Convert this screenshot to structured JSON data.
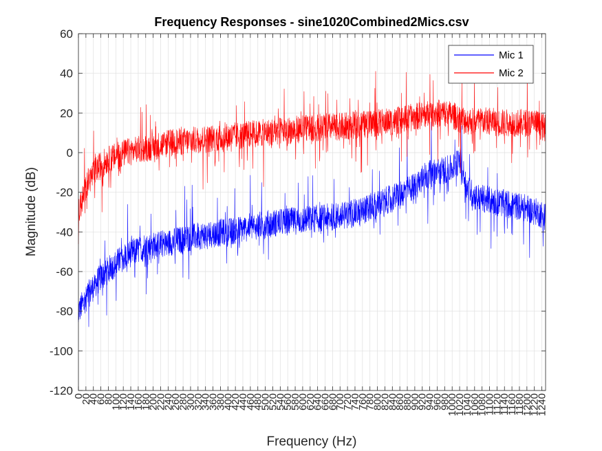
{
  "chart_data": {
    "type": "line",
    "title": "Frequency Responses - sine1020Combined2Mics.csv",
    "xlabel": "Frequency (Hz)",
    "ylabel": "Magnitude (dB)",
    "xlim": [
      0,
      1250
    ],
    "ylim": [
      -120,
      60
    ],
    "grid": true,
    "legend_position": "top-right",
    "y_ticks": [
      -120,
      -100,
      -80,
      -60,
      -40,
      -20,
      0,
      20,
      40,
      60
    ],
    "y_tick_labels": [
      "-120",
      "-100",
      "-80",
      "-60",
      "-40",
      "-20",
      "0",
      "20",
      "40",
      "60"
    ],
    "x_ticks": [
      0,
      20,
      40,
      60,
      80,
      100,
      120,
      140,
      160,
      180,
      200,
      220,
      240,
      260,
      280,
      300,
      320,
      340,
      360,
      380,
      400,
      420,
      440,
      460,
      480,
      500,
      520,
      540,
      560,
      580,
      600,
      620,
      640,
      660,
      680,
      700,
      720,
      740,
      760,
      780,
      800,
      820,
      840,
      860,
      880,
      900,
      920,
      940,
      960,
      980,
      1000,
      1020,
      1040,
      1060,
      1080,
      1100,
      1120,
      1140,
      1160,
      1180,
      1200,
      1220,
      1240
    ],
    "x_tick_labels": [
      "0",
      "20",
      "40",
      "60",
      "80",
      "100",
      "120",
      "140",
      "160",
      "180",
      "200",
      "220",
      "240",
      "260",
      "280",
      "300",
      "320",
      "340",
      "360",
      "380",
      "400",
      "420",
      "440",
      "460",
      "480",
      "500",
      "520",
      "540",
      "560",
      "580",
      "600",
      "620",
      "640",
      "660",
      "680",
      "700",
      "720",
      "740",
      "760",
      "780",
      "800",
      "820",
      "840",
      "860",
      "880",
      "900",
      "920",
      "940",
      "960",
      "980",
      "1000",
      "1020",
      "1040",
      "1060",
      "1080",
      "1100",
      "1120",
      "1140",
      "1160",
      "1180",
      "1200",
      "1220",
      "1240"
    ],
    "series": [
      {
        "name": "Mic 1",
        "color": "#0000ff",
        "x": [
          0,
          25,
          50,
          75,
          100,
          125,
          150,
          175,
          200,
          250,
          300,
          350,
          400,
          450,
          500,
          550,
          600,
          650,
          700,
          750,
          800,
          850,
          900,
          925,
          950,
          975,
          1000,
          1010,
          1020,
          1030,
          1040,
          1060,
          1080,
          1100,
          1125,
          1150,
          1175,
          1200,
          1225,
          1250
        ],
        "values": [
          -80,
          -72,
          -65,
          -60,
          -56,
          -52,
          -50,
          -48,
          -47,
          -45,
          -43,
          -41,
          -40,
          -38,
          -36,
          -35,
          -34,
          -33,
          -32,
          -30,
          -26,
          -22,
          -17,
          -12,
          -10,
          -9,
          -8,
          -6,
          -3,
          -10,
          -18,
          -22,
          -23,
          -24,
          -25,
          -26,
          -27,
          -28,
          -30,
          -32
        ]
      },
      {
        "name": "Mic 2",
        "color": "#ff0000",
        "x": [
          0,
          25,
          50,
          75,
          100,
          125,
          150,
          175,
          200,
          250,
          300,
          350,
          400,
          450,
          500,
          550,
          600,
          650,
          700,
          750,
          800,
          850,
          900,
          925,
          950,
          975,
          1000,
          1010,
          1020,
          1030,
          1040,
          1060,
          1080,
          1100,
          1125,
          1150,
          1175,
          1200,
          1225,
          1250
        ],
        "values": [
          -30,
          -15,
          -8,
          -4,
          -2,
          0,
          1,
          2,
          3,
          5,
          6,
          7,
          8,
          9,
          10,
          11,
          12,
          13,
          13,
          14,
          15,
          16,
          18,
          19,
          20,
          20,
          19,
          18,
          17,
          17,
          16,
          16,
          16,
          16,
          15,
          15,
          15,
          15,
          15,
          12
        ]
      }
    ]
  }
}
